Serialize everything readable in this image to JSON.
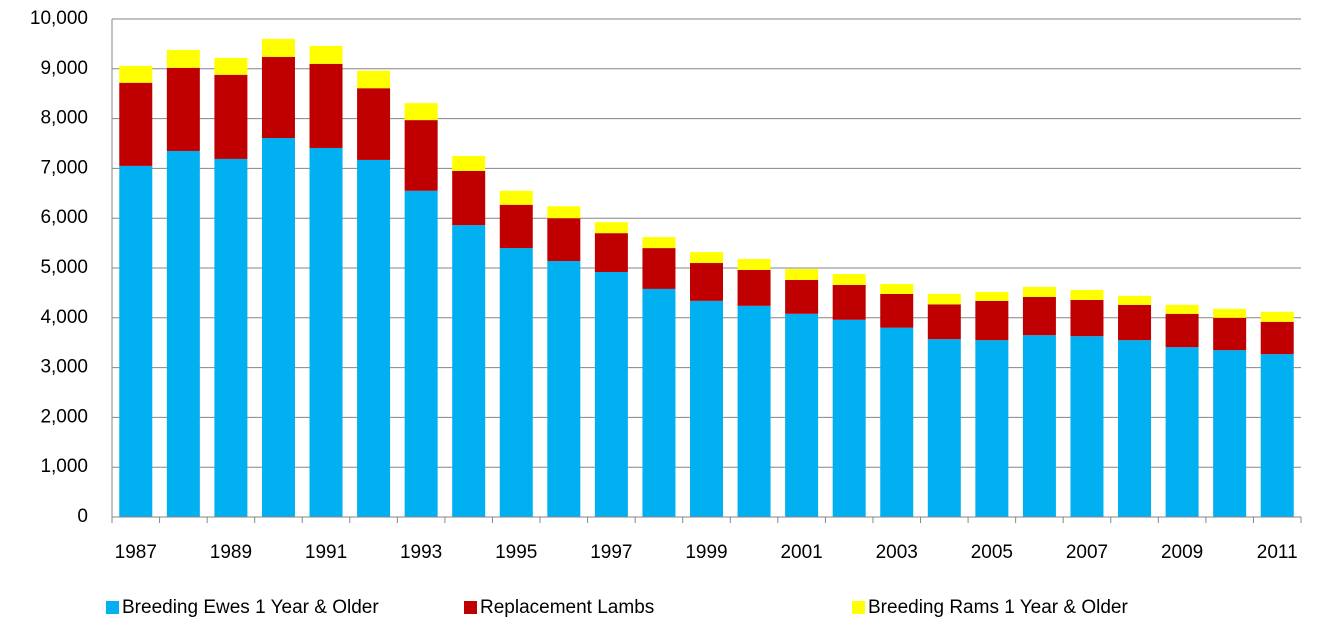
{
  "chart_data": {
    "type": "stacked-bar",
    "categories": [
      "1987",
      null,
      "1989",
      null,
      "1991",
      null,
      "1993",
      null,
      "1995",
      null,
      "1997",
      null,
      "1999",
      null,
      "2001",
      null,
      "2003",
      null,
      "2005",
      null,
      "2007",
      null,
      "2009",
      null,
      "2011"
    ],
    "series": [
      {
        "name": "Breeding Ewes 1 Year & Older",
        "color": "#00b0f0",
        "values": [
          7050,
          7350,
          7190,
          7610,
          7410,
          7170,
          6550,
          5860,
          5400,
          5140,
          4920,
          4580,
          4340,
          4240,
          4080,
          3960,
          3800,
          3570,
          3550,
          3650,
          3630,
          3550,
          3410,
          3350,
          3270
        ]
      },
      {
        "name": "Replacement Lambs",
        "color": "#c00000",
        "values": [
          1670,
          1670,
          1690,
          1630,
          1690,
          1440,
          1420,
          1090,
          870,
          860,
          780,
          820,
          760,
          720,
          680,
          700,
          680,
          700,
          790,
          770,
          730,
          710,
          670,
          650,
          650
        ]
      },
      {
        "name": "Breeding Rams 1 Year & Older",
        "color": "#ffff00",
        "values": [
          340,
          360,
          340,
          360,
          360,
          350,
          340,
          300,
          280,
          240,
          220,
          220,
          220,
          220,
          220,
          220,
          200,
          210,
          180,
          200,
          200,
          180,
          180,
          180,
          200
        ]
      }
    ],
    "ylim": [
      0,
      10000
    ],
    "yticks": [
      0,
      {
        "value": 1000,
        "label": "1,000"
      },
      {
        "value": 2000,
        "label": "2,000"
      },
      {
        "value": 3000,
        "label": "3,000"
      },
      {
        "value": 4000,
        "label": "4,000"
      },
      {
        "value": 5000,
        "label": "5,000"
      },
      {
        "value": 6000,
        "label": "6,000"
      },
      {
        "value": 7000,
        "label": "7,000"
      },
      {
        "value": 8000,
        "label": "8,000"
      },
      {
        "value": 9000,
        "label": "9,000"
      },
      {
        "value": 10000,
        "label": "10,000"
      }
    ],
    "grid": true,
    "legend": "bottom"
  }
}
